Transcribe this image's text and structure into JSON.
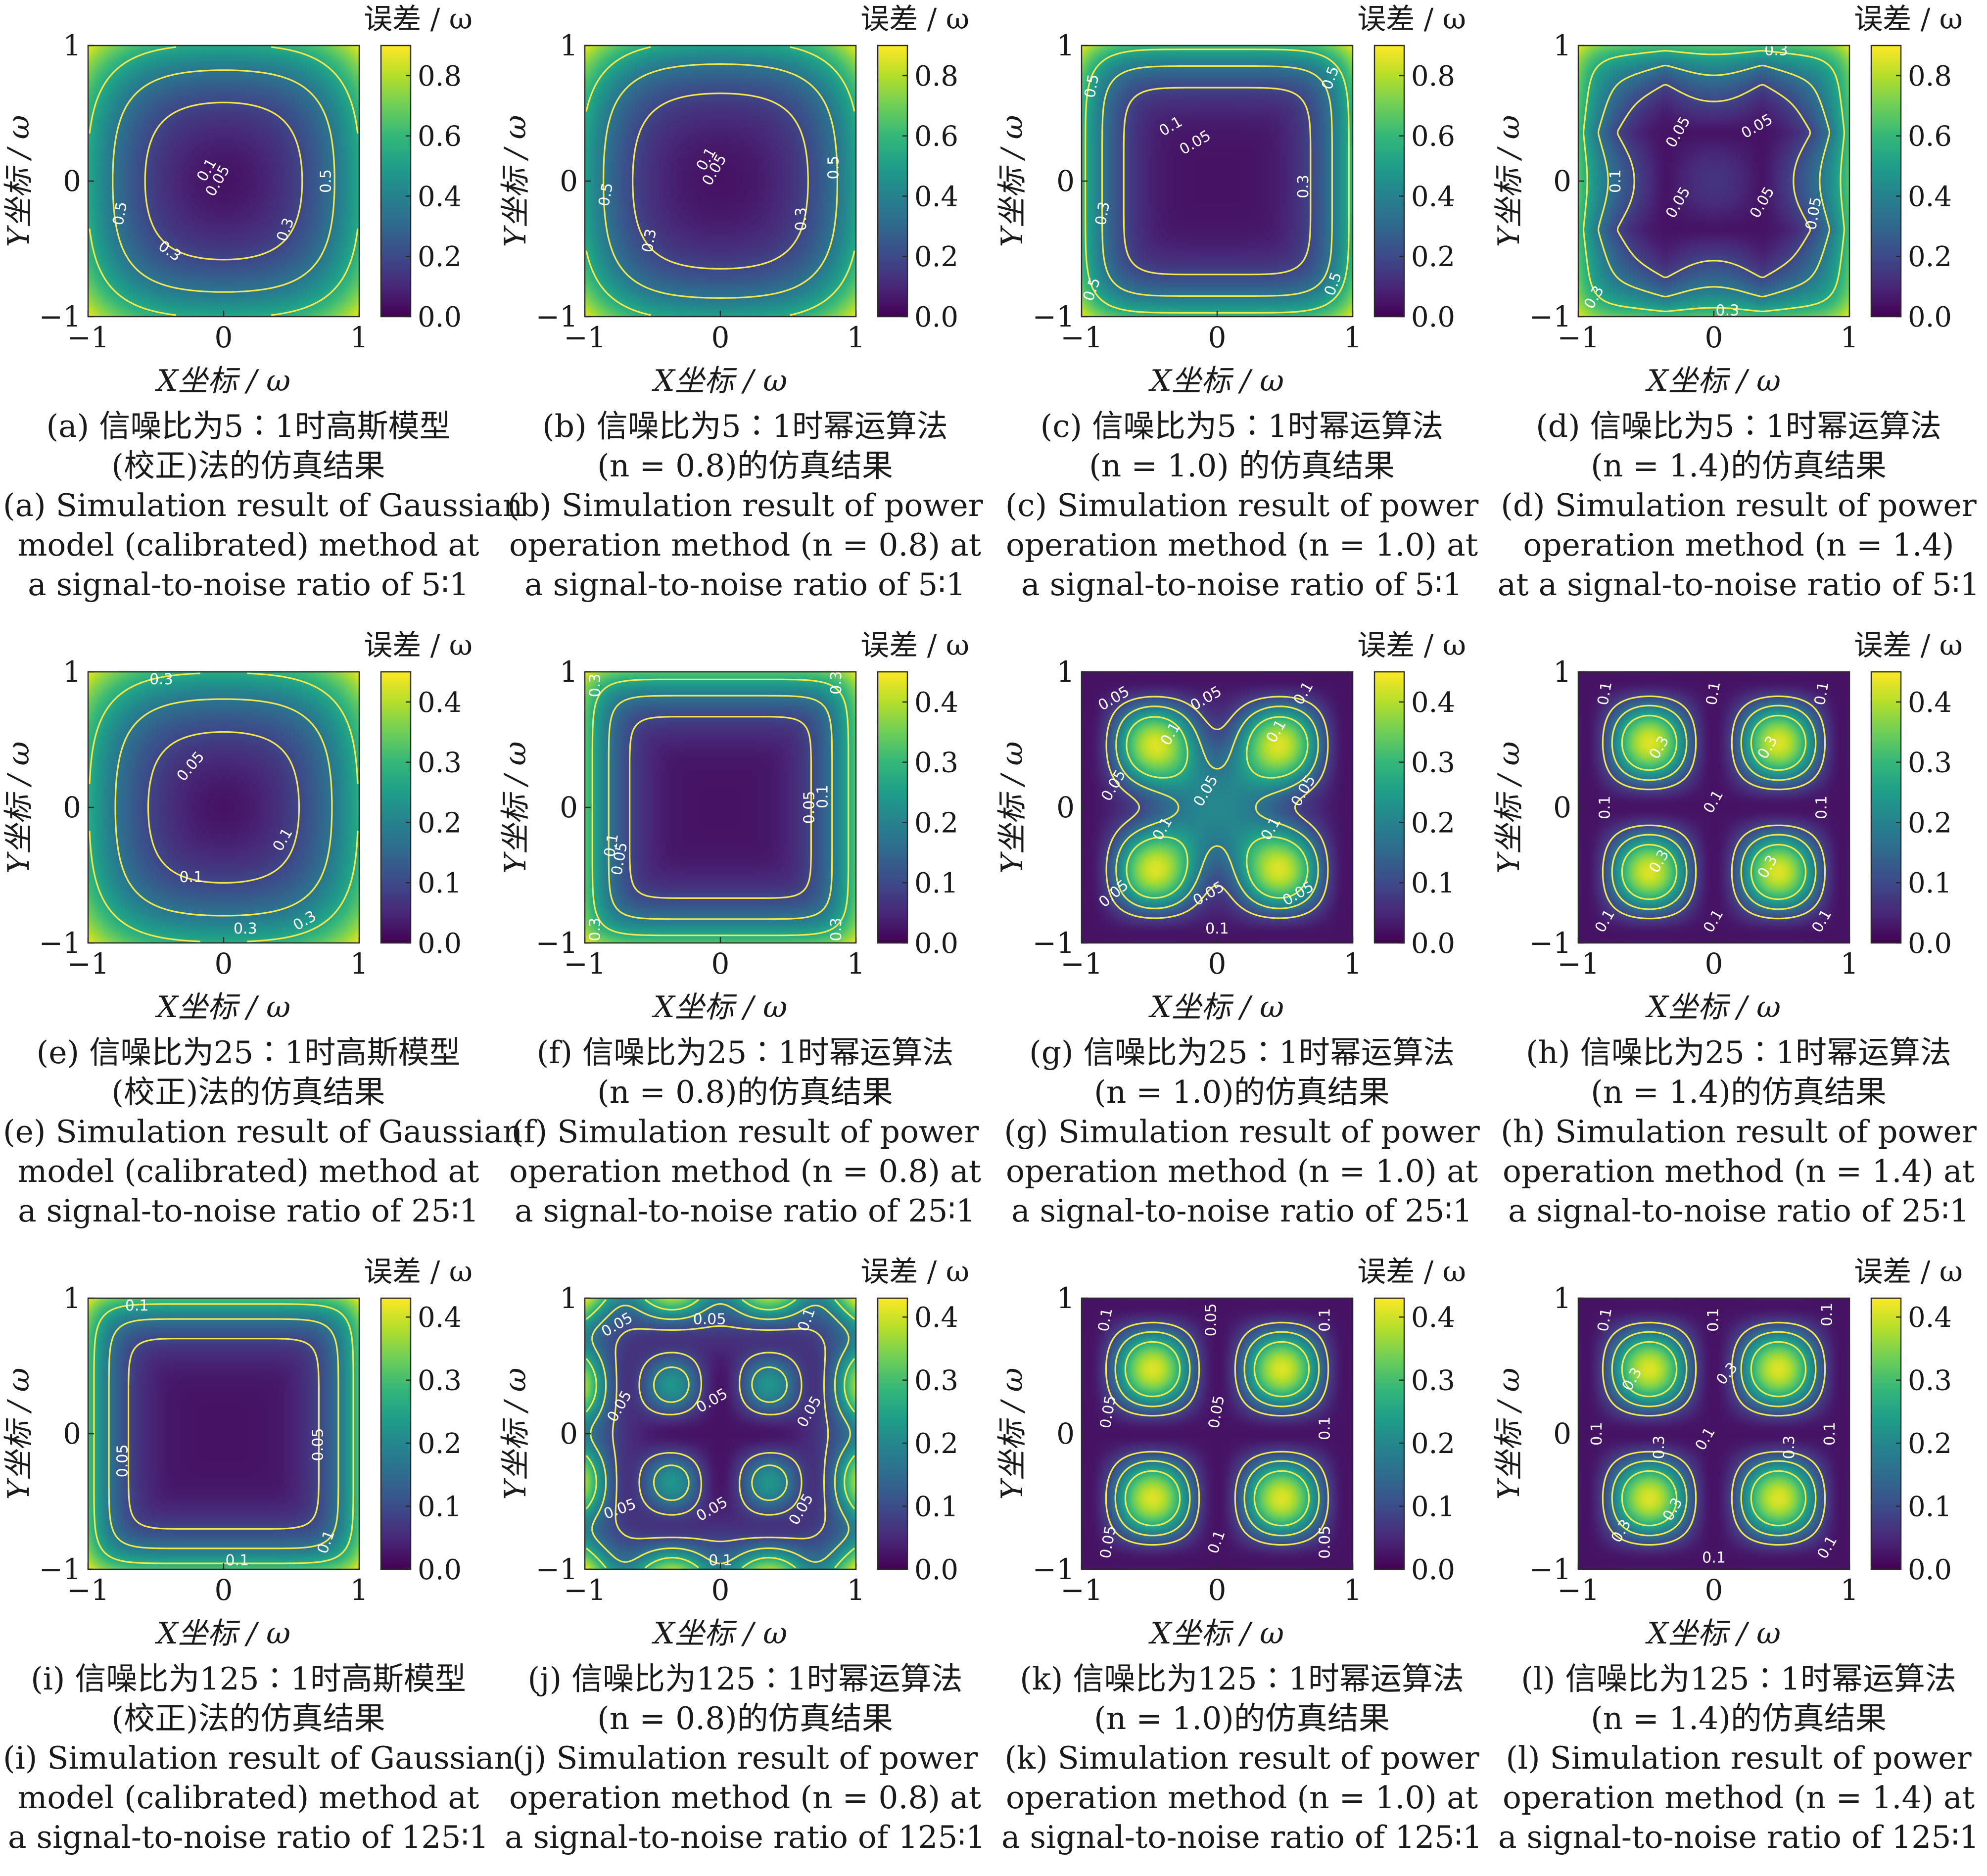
{
  "colorbar_label": "误差 / ω",
  "xlabel": "X坐标 / ω",
  "ylabel": "Y坐标 / ω",
  "colormap": [
    "#440154",
    "#482878",
    "#3e4a89",
    "#31688e",
    "#26828e",
    "#1f9e89",
    "#35b779",
    "#6ece58",
    "#b5de2b",
    "#fde725"
  ],
  "contour_color": "#f2e84d",
  "chart_data": [
    {
      "id": "a",
      "type": "heatmap",
      "xlim": [
        -1,
        1
      ],
      "ylim": [
        -1,
        1
      ],
      "xticks": [
        "−1",
        "0",
        "1"
      ],
      "yticks": [
        "−1",
        "0",
        "1"
      ],
      "cbar_range": [
        0,
        0.9
      ],
      "cbar_ticks": [
        "0.0",
        "0.2",
        "0.4",
        "0.6",
        "0.8"
      ],
      "contour_labels": [
        "0.05",
        "0.1",
        "0.3",
        "0.5"
      ],
      "caption": [
        "(a) 信噪比为5∶1时高斯模型",
        "(校正)法的仿真结果",
        "(a) Simulation result of Gaussian",
        "model (calibrated) method at",
        "a signal-to-noise ratio of 5∶1"
      ]
    },
    {
      "id": "b",
      "type": "heatmap",
      "xlim": [
        -1,
        1
      ],
      "ylim": [
        -1,
        1
      ],
      "xticks": [
        "−1",
        "0",
        "1"
      ],
      "yticks": [
        "−1",
        "0",
        "1"
      ],
      "cbar_range": [
        0,
        0.9
      ],
      "cbar_ticks": [
        "0.0",
        "0.2",
        "0.4",
        "0.6",
        "0.8"
      ],
      "contour_labels": [
        "0.05",
        "0.1",
        "0.3",
        "0.5"
      ],
      "caption": [
        "(b) 信噪比为5∶1时幂运算法",
        "(n = 0.8)的仿真结果",
        "(b) Simulation result of power",
        "operation method (n = 0.8) at",
        "a signal-to-noise ratio of 5∶1"
      ]
    },
    {
      "id": "c",
      "type": "heatmap",
      "xlim": [
        -1,
        1
      ],
      "ylim": [
        -1,
        1
      ],
      "xticks": [
        "−1",
        "0",
        "1"
      ],
      "yticks": [
        "−1",
        "0",
        "1"
      ],
      "cbar_range": [
        0,
        0.9
      ],
      "cbar_ticks": [
        "0.0",
        "0.2",
        "0.4",
        "0.6",
        "0.8"
      ],
      "contour_labels": [
        "0.05",
        "0.1",
        "0.3",
        "0.5"
      ],
      "caption": [
        "(c) 信噪比为5∶1时幂运算法",
        "(n = 1.0) 的仿真结果",
        "(c) Simulation result of power",
        "operation method (n = 1.0) at",
        "a signal-to-noise ratio of 5∶1"
      ]
    },
    {
      "id": "d",
      "type": "heatmap",
      "xlim": [
        -1,
        1
      ],
      "ylim": [
        -1,
        1
      ],
      "xticks": [
        "−1",
        "0",
        "1"
      ],
      "yticks": [
        "−1",
        "0",
        "1"
      ],
      "cbar_range": [
        0,
        0.9
      ],
      "cbar_ticks": [
        "0.0",
        "0.2",
        "0.4",
        "0.6",
        "0.8"
      ],
      "contour_labels": [
        "0.05",
        "0.1",
        "0.3"
      ],
      "caption": [
        "(d) 信噪比为5∶1时幂运算法",
        "(n = 1.4)的仿真结果",
        "(d) Simulation result of power",
        "operation method (n = 1.4)",
        "at a signal-to-noise ratio of 5∶1"
      ]
    },
    {
      "id": "e",
      "type": "heatmap",
      "xlim": [
        -1,
        1
      ],
      "ylim": [
        -1,
        1
      ],
      "xticks": [
        "−1",
        "0",
        "1"
      ],
      "yticks": [
        "−1",
        "0",
        "1"
      ],
      "cbar_range": [
        0,
        0.45
      ],
      "cbar_ticks": [
        "0.0",
        "0.1",
        "0.2",
        "0.3",
        "0.4"
      ],
      "contour_labels": [
        "0.05",
        "0.1",
        "0.3"
      ],
      "caption": [
        "(e) 信噪比为25∶1时高斯模型",
        "(校正)法的仿真结果",
        "(e) Simulation result of Gaussian",
        "model (calibrated) method at",
        "a signal-to-noise ratio of 25∶1"
      ]
    },
    {
      "id": "f",
      "type": "heatmap",
      "xlim": [
        -1,
        1
      ],
      "ylim": [
        -1,
        1
      ],
      "xticks": [
        "−1",
        "0",
        "1"
      ],
      "yticks": [
        "−1",
        "0",
        "1"
      ],
      "cbar_range": [
        0,
        0.45
      ],
      "cbar_ticks": [
        "0.0",
        "0.1",
        "0.2",
        "0.3",
        "0.4"
      ],
      "contour_labels": [
        "0.05",
        "0.1",
        "0.3"
      ],
      "caption": [
        "(f) 信噪比为25∶1时幂运算法",
        "(n = 0.8)的仿真结果",
        "(f) Simulation result of power",
        "operation method (n = 0.8) at",
        "a signal-to-noise ratio of 25∶1"
      ]
    },
    {
      "id": "g",
      "type": "heatmap",
      "xlim": [
        -1,
        1
      ],
      "ylim": [
        -1,
        1
      ],
      "xticks": [
        "−1",
        "0",
        "1"
      ],
      "yticks": [
        "−1",
        "0",
        "1"
      ],
      "cbar_range": [
        0,
        0.45
      ],
      "cbar_ticks": [
        "0.0",
        "0.1",
        "0.2",
        "0.3",
        "0.4"
      ],
      "contour_labels": [
        "0.05",
        "0.1"
      ],
      "caption": [
        "(g) 信噪比为25∶1时幂运算法",
        "(n = 1.0)的仿真结果",
        "(g) Simulation result of power",
        "operation method (n = 1.0) at",
        "a signal-to-noise ratio of 25∶1"
      ]
    },
    {
      "id": "h",
      "type": "heatmap",
      "xlim": [
        -1,
        1
      ],
      "ylim": [
        -1,
        1
      ],
      "xticks": [
        "−1",
        "0",
        "1"
      ],
      "yticks": [
        "−1",
        "0",
        "1"
      ],
      "cbar_range": [
        0,
        0.45
      ],
      "cbar_ticks": [
        "0.0",
        "0.1",
        "0.2",
        "0.3",
        "0.4"
      ],
      "contour_labels": [
        "0.1",
        "0.3"
      ],
      "caption": [
        "(h) 信噪比为25∶1时幂运算法",
        "(n = 1.4)的仿真结果",
        "(h) Simulation result of power",
        "operation method (n = 1.4) at",
        "a signal-to-noise ratio of 25∶1"
      ]
    },
    {
      "id": "i",
      "type": "heatmap",
      "xlim": [
        -1,
        1
      ],
      "ylim": [
        -1,
        1
      ],
      "xticks": [
        "−1",
        "0",
        "1"
      ],
      "yticks": [
        "−1",
        "0",
        "1"
      ],
      "cbar_range": [
        0,
        0.43
      ],
      "cbar_ticks": [
        "0.0",
        "0.1",
        "0.2",
        "0.3",
        "0.4"
      ],
      "contour_labels": [
        "0.05",
        "0.1"
      ],
      "caption": [
        "(i) 信噪比为125∶1时高斯模型",
        "(校正)法的仿真结果",
        "(i) Simulation result of Gaussian",
        "model (calibrated) method at",
        "a signal-to-noise ratio of 125∶1"
      ]
    },
    {
      "id": "j",
      "type": "heatmap",
      "xlim": [
        -1,
        1
      ],
      "ylim": [
        -1,
        1
      ],
      "xticks": [
        "−1",
        "0",
        "1"
      ],
      "yticks": [
        "−1",
        "0",
        "1"
      ],
      "cbar_range": [
        0,
        0.43
      ],
      "cbar_ticks": [
        "0.0",
        "0.1",
        "0.2",
        "0.3",
        "0.4"
      ],
      "contour_labels": [
        "0.05",
        "0.1"
      ],
      "caption": [
        "(j) 信噪比为125∶1时幂运算法",
        "(n = 0.8)的仿真结果",
        "(j) Simulation result of power",
        "operation method (n = 0.8) at",
        "a signal-to-noise ratio of 125∶1"
      ]
    },
    {
      "id": "k",
      "type": "heatmap",
      "xlim": [
        -1,
        1
      ],
      "ylim": [
        -1,
        1
      ],
      "xticks": [
        "−1",
        "0",
        "1"
      ],
      "yticks": [
        "−1",
        "0",
        "1"
      ],
      "cbar_range": [
        0,
        0.43
      ],
      "cbar_ticks": [
        "0.0",
        "0.1",
        "0.2",
        "0.3",
        "0.4"
      ],
      "contour_labels": [
        "0.05",
        "0.1"
      ],
      "caption": [
        "(k) 信噪比为125∶1时幂运算法",
        "(n = 1.0)的仿真结果",
        "(k) Simulation result of power",
        "operation method (n = 1.0) at",
        "a signal-to-noise ratio of 125∶1"
      ]
    },
    {
      "id": "l",
      "type": "heatmap",
      "xlim": [
        -1,
        1
      ],
      "ylim": [
        -1,
        1
      ],
      "xticks": [
        "−1",
        "0",
        "1"
      ],
      "yticks": [
        "−1",
        "0",
        "1"
      ],
      "cbar_range": [
        0,
        0.43
      ],
      "cbar_ticks": [
        "0.0",
        "0.1",
        "0.2",
        "0.3",
        "0.4"
      ],
      "contour_labels": [
        "0.1",
        "0.3"
      ],
      "caption": [
        "(l) 信噪比为125∶1时幂运算法",
        "(n = 1.4)的仿真结果",
        "(l) Simulation result of power",
        "operation method (n = 1.4) at",
        "a signal-to-noise ratio of 125∶1"
      ]
    }
  ]
}
